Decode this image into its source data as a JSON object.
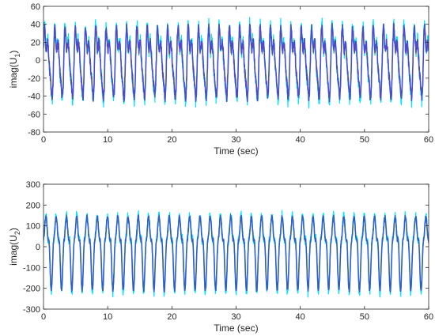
{
  "figure": {
    "colors": {
      "cyan": "#00e5ff",
      "blue": "#2f5fc4",
      "purple": "#7a2fd0",
      "axis": "#262626"
    }
  },
  "chart_data": [
    {
      "type": "line",
      "xlabel": "Time (sec)",
      "ylabel": "imag(U",
      "ylabel_sub": "1",
      "ylabel_close": ")",
      "xlim": [
        0,
        60
      ],
      "ylim": [
        -80,
        60
      ],
      "xticks": [
        0,
        10,
        20,
        30,
        40,
        50,
        60
      ],
      "yticks": [
        -80,
        -60,
        -40,
        -20,
        0,
        20,
        40,
        60
      ],
      "grid": false,
      "signal": {
        "description_free": true,
        "x_range": [
          0,
          60
        ],
        "period_sec": 1.6,
        "peak_max": 55,
        "trough_min": -58,
        "typical_band": [
          -25,
          30
        ]
      },
      "series": [
        {
          "color": "#00e5ff",
          "role": "background-noise"
        },
        {
          "color": "#2f5fc4",
          "role": "main"
        },
        {
          "color": "#7a2fd0",
          "role": "overlay"
        }
      ]
    },
    {
      "type": "line",
      "xlabel": "Time (sec)",
      "ylabel": "imag(U",
      "ylabel_sub": "2",
      "ylabel_close": ")",
      "xlim": [
        0,
        60
      ],
      "ylim": [
        -300,
        300
      ],
      "xticks": [
        0,
        10,
        20,
        30,
        40,
        50,
        60
      ],
      "yticks": [
        -300,
        -200,
        -100,
        0,
        100,
        200,
        300
      ],
      "grid": false,
      "signal": {
        "x_range": [
          0,
          60
        ],
        "period_sec": 1.6,
        "peak_max": 235,
        "trough_min": -250,
        "typical_band": [
          -100,
          100
        ]
      },
      "series": [
        {
          "color": "#00e5ff",
          "role": "background-noise"
        },
        {
          "color": "#2f5fc4",
          "role": "main"
        }
      ]
    }
  ]
}
